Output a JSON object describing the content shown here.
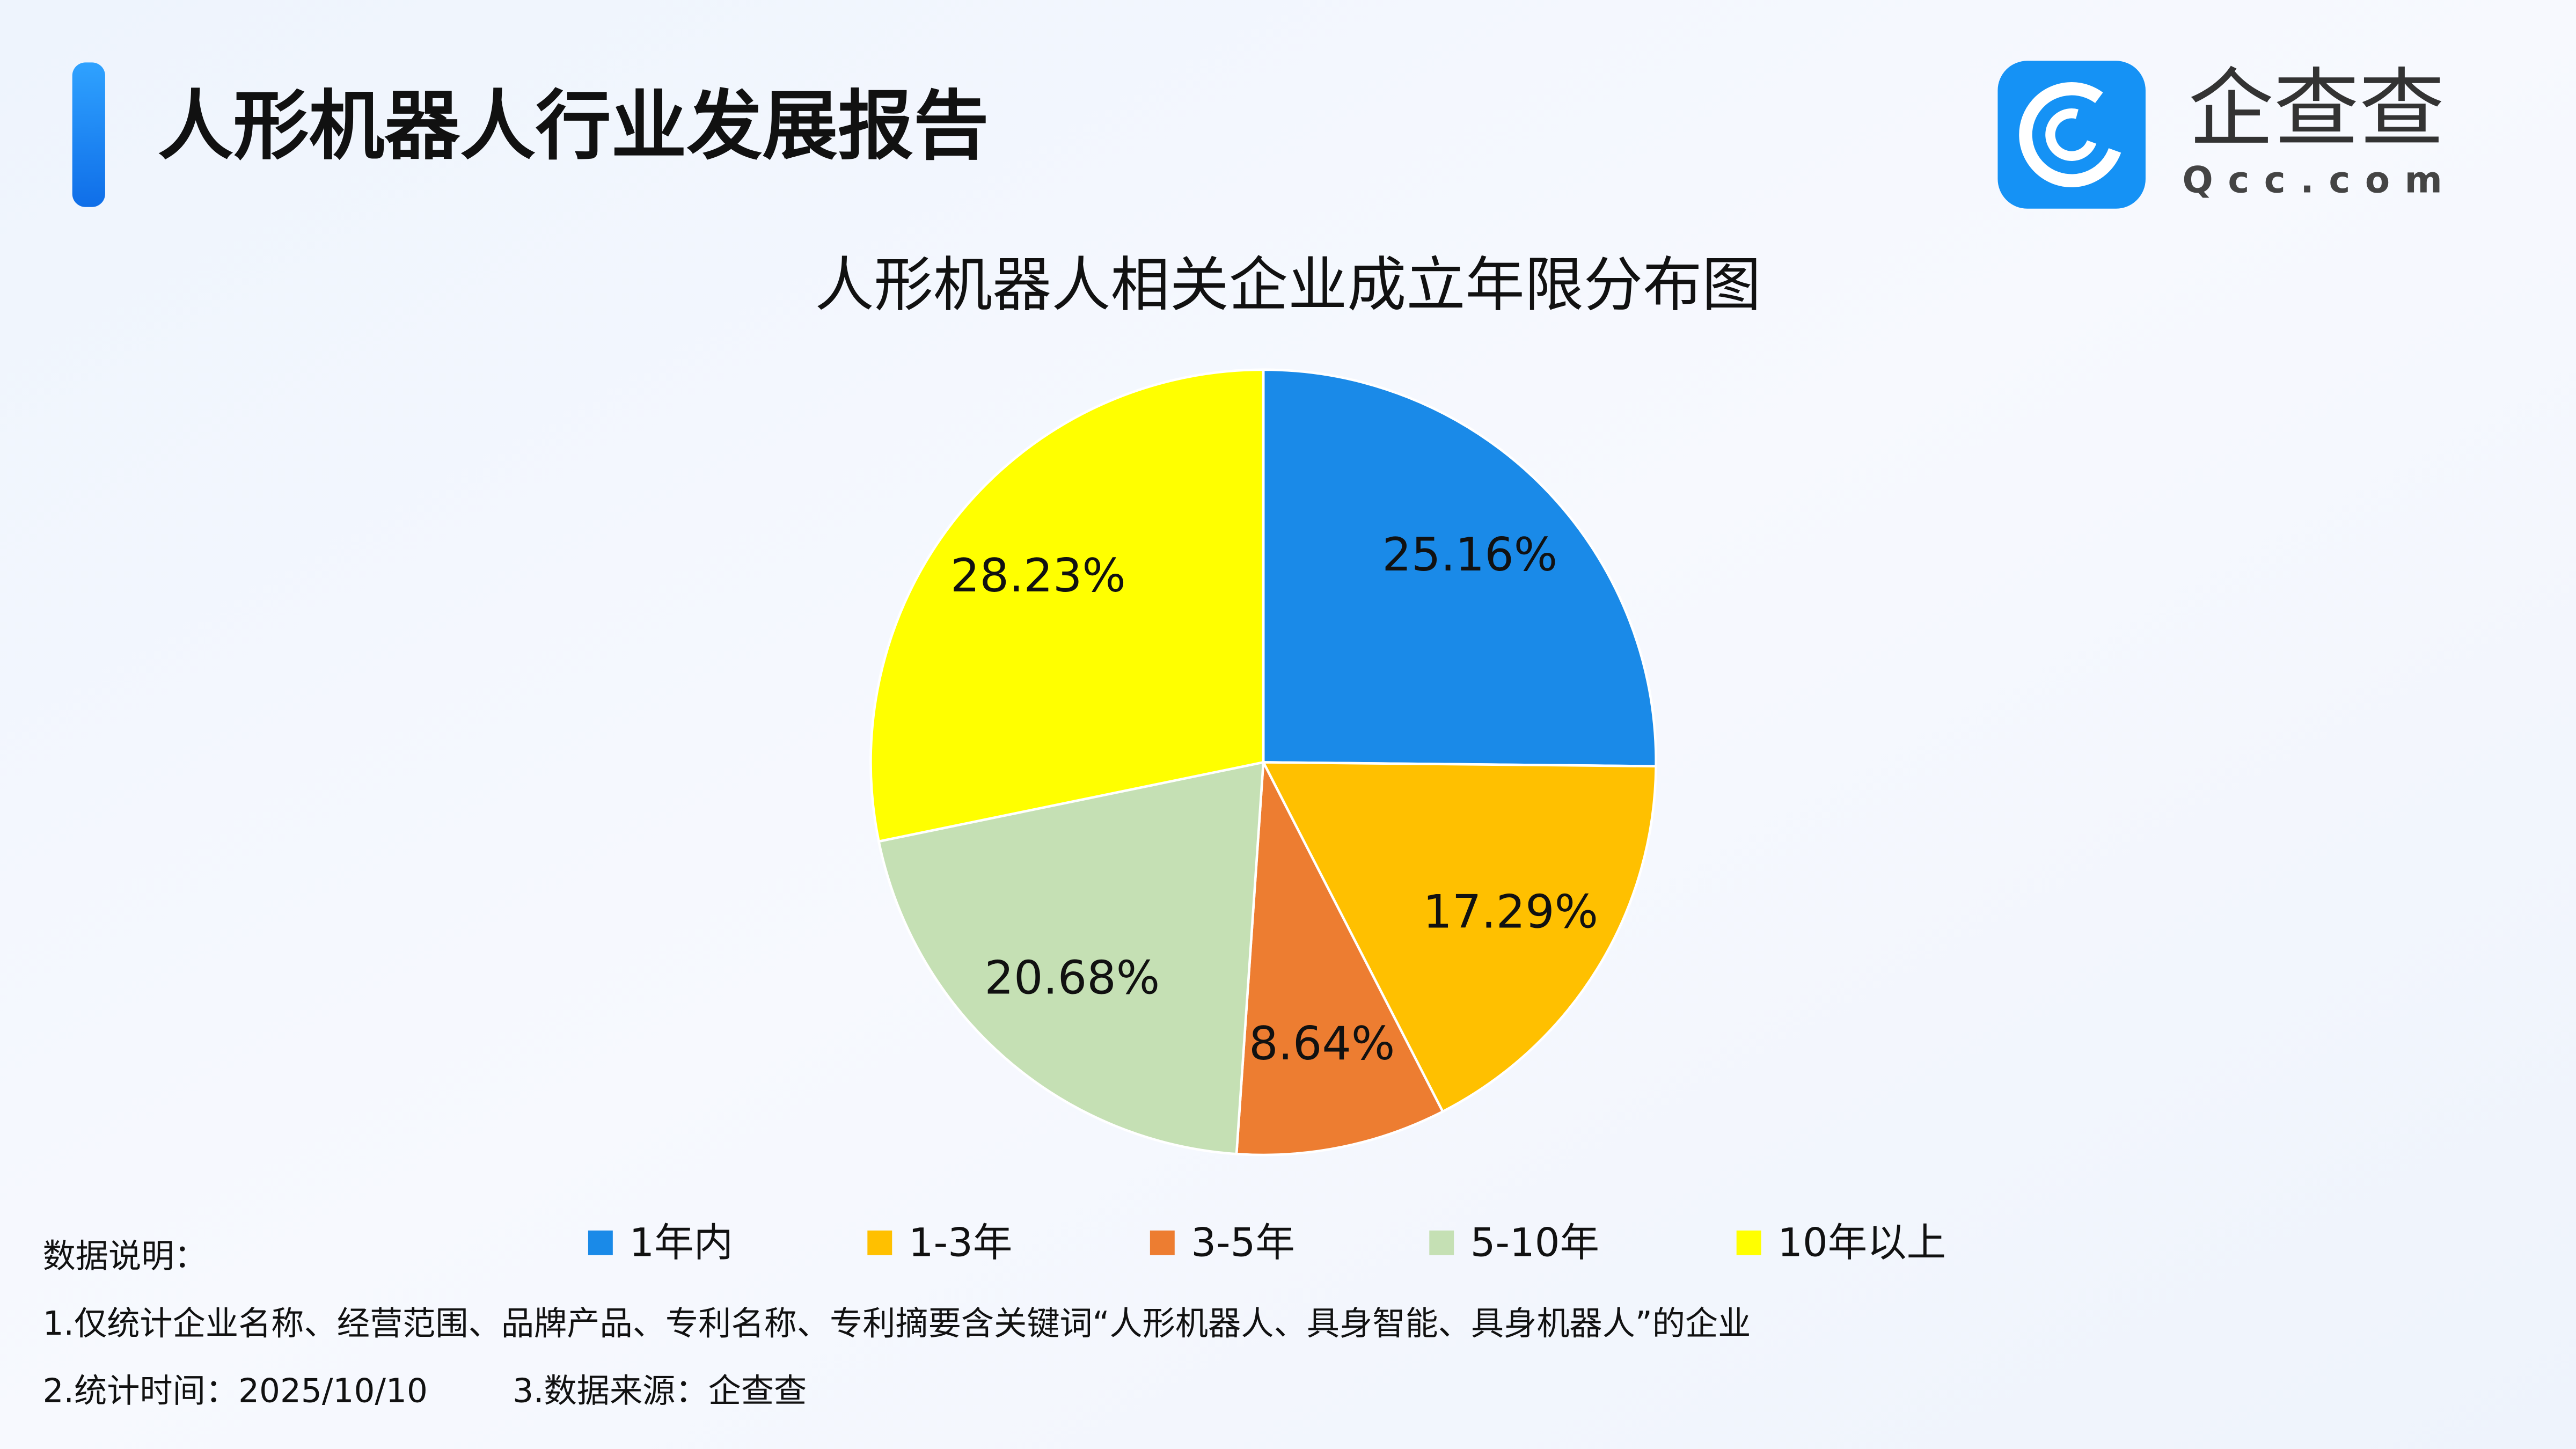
{
  "header": {
    "title": "人形机器人行业发展报告",
    "logo_name": "企查查",
    "logo_url": "Qcc.com"
  },
  "chart_data": {
    "type": "pie",
    "title": "人形机器人相关企业成立年限分布图",
    "categories": [
      "1年内",
      "1-3年",
      "3-5年",
      "5-10年",
      "10年以上"
    ],
    "values": [
      25.16,
      17.29,
      8.64,
      20.68,
      28.23
    ],
    "value_labels": [
      "25.16%",
      "17.29%",
      "8.64%",
      "20.68%",
      "28.23%"
    ],
    "colors": [
      "#1a8ae8",
      "#ffc000",
      "#ed7d31",
      "#c5e0b4",
      "#ffff00"
    ],
    "legend": "bottom"
  },
  "notes": {
    "heading": "数据说明：",
    "lines": [
      "1.仅统计企业名称、经营范围、品牌产品、专利名称、专利摘要含关键词“人形机器人、具身智能、具身机器人”的企业",
      "2.统计时间：2025/10/10",
      "3.数据来源：企查查"
    ]
  }
}
